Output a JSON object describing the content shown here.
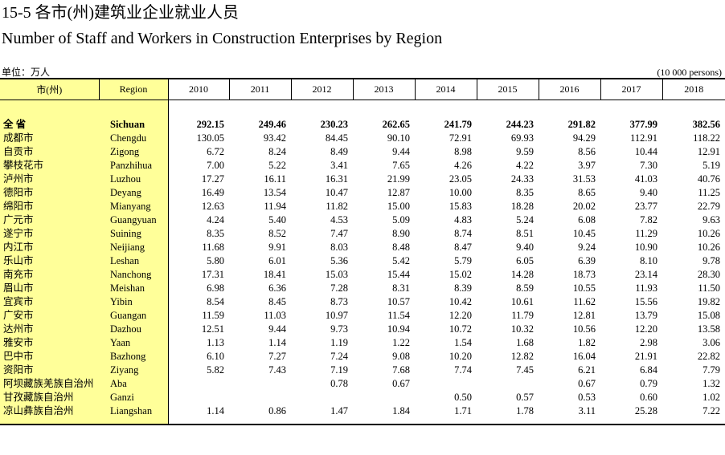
{
  "title_cn": "15-5  各市(州)建筑业企业就业人员",
  "title_en": "Number of Staff and Workers in Construction Enterprises by Region",
  "unit_left": "单位：万人",
  "unit_right": "(10 000 persons)",
  "header": {
    "col_cn": "市(州)",
    "col_en": "Region",
    "years": [
      "2010",
      "2011",
      "2012",
      "2013",
      "2014",
      "2015",
      "2016",
      "2017",
      "2018"
    ]
  },
  "rows": [
    {
      "cn": "全  省",
      "en": "Sichuan",
      "v": [
        "292.15",
        "249.46",
        "230.23",
        "262.65",
        "241.79",
        "244.23",
        "291.82",
        "377.99",
        "382.56"
      ]
    },
    {
      "cn": "成都市",
      "en": "Chengdu",
      "v": [
        "130.05",
        "93.42",
        "84.45",
        "90.10",
        "72.91",
        "69.93",
        "94.29",
        "112.91",
        "118.22"
      ]
    },
    {
      "cn": "自贡市",
      "en": "Zigong",
      "v": [
        "6.72",
        "8.24",
        "8.49",
        "9.44",
        "8.98",
        "9.59",
        "8.56",
        "10.44",
        "12.91"
      ]
    },
    {
      "cn": "攀枝花市",
      "en": "Panzhihua",
      "v": [
        "7.00",
        "5.22",
        "3.41",
        "7.65",
        "4.26",
        "4.22",
        "3.97",
        "7.30",
        "5.19"
      ]
    },
    {
      "cn": "泸州市",
      "en": "Luzhou",
      "v": [
        "17.27",
        "16.11",
        "16.31",
        "21.99",
        "23.05",
        "24.33",
        "31.53",
        "41.03",
        "40.76"
      ]
    },
    {
      "cn": "德阳市",
      "en": "Deyang",
      "v": [
        "16.49",
        "13.54",
        "10.47",
        "12.87",
        "10.00",
        "8.35",
        "8.65",
        "9.40",
        "11.25"
      ]
    },
    {
      "cn": "绵阳市",
      "en": "Mianyang",
      "v": [
        "12.63",
        "11.94",
        "11.82",
        "15.00",
        "15.83",
        "18.28",
        "20.02",
        "23.77",
        "22.79"
      ]
    },
    {
      "cn": "广元市",
      "en": "Guangyuan",
      "v": [
        "4.24",
        "5.40",
        "4.53",
        "5.09",
        "4.83",
        "5.24",
        "6.08",
        "7.82",
        "9.63"
      ]
    },
    {
      "cn": "遂宁市",
      "en": "Suining",
      "v": [
        "8.35",
        "8.52",
        "7.47",
        "8.90",
        "8.74",
        "8.51",
        "10.45",
        "11.29",
        "10.26"
      ]
    },
    {
      "cn": "内江市",
      "en": "Neijiang",
      "v": [
        "11.68",
        "9.91",
        "8.03",
        "8.48",
        "8.47",
        "9.40",
        "9.24",
        "10.90",
        "10.26"
      ]
    },
    {
      "cn": "乐山市",
      "en": "Leshan",
      "v": [
        "5.80",
        "6.01",
        "5.36",
        "5.42",
        "5.79",
        "6.05",
        "6.39",
        "8.10",
        "9.78"
      ]
    },
    {
      "cn": "南充市",
      "en": "Nanchong",
      "v": [
        "17.31",
        "18.41",
        "15.03",
        "15.44",
        "15.02",
        "14.28",
        "18.73",
        "23.14",
        "28.30"
      ]
    },
    {
      "cn": "眉山市",
      "en": "Meishan",
      "v": [
        "6.98",
        "6.36",
        "7.28",
        "8.31",
        "8.39",
        "8.59",
        "10.55",
        "11.93",
        "11.50"
      ]
    },
    {
      "cn": "宜宾市",
      "en": "Yibin",
      "v": [
        "8.54",
        "8.45",
        "8.73",
        "10.57",
        "10.42",
        "10.61",
        "11.62",
        "15.56",
        "19.82"
      ]
    },
    {
      "cn": "广安市",
      "en": "Guangan",
      "v": [
        "11.59",
        "11.03",
        "10.97",
        "11.54",
        "12.20",
        "11.79",
        "12.81",
        "13.79",
        "15.08"
      ]
    },
    {
      "cn": "达州市",
      "en": "Dazhou",
      "v": [
        "12.51",
        "9.44",
        "9.73",
        "10.94",
        "10.72",
        "10.32",
        "10.56",
        "12.20",
        "13.58"
      ]
    },
    {
      "cn": "雅安市",
      "en": "Yaan",
      "v": [
        "1.13",
        "1.14",
        "1.19",
        "1.22",
        "1.54",
        "1.68",
        "1.82",
        "2.98",
        "3.06"
      ]
    },
    {
      "cn": "巴中市",
      "en": "Bazhong",
      "v": [
        "6.10",
        "7.27",
        "7.24",
        "9.08",
        "10.20",
        "12.82",
        "16.04",
        "21.91",
        "22.82"
      ]
    },
    {
      "cn": "资阳市",
      "en": "Ziyang",
      "v": [
        "5.82",
        "7.43",
        "7.19",
        "7.68",
        "7.74",
        "7.45",
        "6.21",
        "6.84",
        "7.79"
      ]
    },
    {
      "cn": "阿坝藏族羌族自治州",
      "en": "Aba",
      "v": [
        "",
        "",
        "0.78",
        "0.67",
        "",
        "",
        "0.67",
        "0.79",
        "1.32"
      ]
    },
    {
      "cn": "甘孜藏族自治州",
      "en": "Ganzi",
      "v": [
        "",
        "",
        "",
        "",
        "0.50",
        "0.57",
        "0.53",
        "0.60",
        "1.02"
      ]
    },
    {
      "cn": "凉山彝族自治州",
      "en": "Liangshan",
      "v": [
        "1.14",
        "0.86",
        "1.47",
        "1.84",
        "1.71",
        "1.78",
        "3.11",
        "25.28",
        "7.22"
      ]
    }
  ]
}
